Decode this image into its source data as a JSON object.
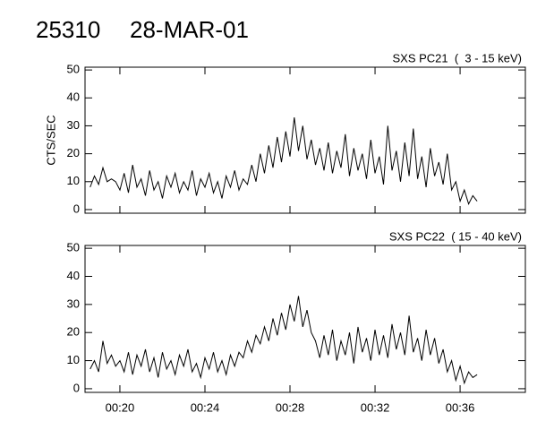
{
  "header": {
    "id": "25310",
    "date": "28-MAR-01"
  },
  "chart_data": [
    {
      "type": "line",
      "title": "SXS PC21  (  3 - 15 keV)",
      "ylabel": "CTS/SEC",
      "xlim": [
        18.36,
        39.07
      ],
      "ylim": [
        -1.3,
        51
      ],
      "xticks": [
        20,
        24,
        28,
        32,
        36
      ],
      "yticks": [
        0,
        10,
        20,
        30,
        40,
        50
      ],
      "x": [
        18.6,
        18.8,
        19.0,
        19.2,
        19.4,
        19.6,
        19.8,
        20.0,
        20.2,
        20.4,
        20.6,
        20.8,
        21.0,
        21.2,
        21.4,
        21.6,
        21.8,
        22.0,
        22.2,
        22.4,
        22.6,
        22.8,
        23.0,
        23.2,
        23.4,
        23.6,
        23.8,
        24.0,
        24.2,
        24.4,
        24.6,
        24.8,
        25.0,
        25.2,
        25.4,
        25.6,
        25.8,
        26.0,
        26.2,
        26.4,
        26.6,
        26.8,
        27.0,
        27.2,
        27.4,
        27.6,
        27.8,
        28.0,
        28.2,
        28.4,
        28.6,
        28.8,
        29.0,
        29.2,
        29.4,
        29.6,
        29.8,
        30.0,
        30.2,
        30.4,
        30.6,
        30.8,
        31.0,
        31.2,
        31.4,
        31.6,
        31.8,
        32.0,
        32.2,
        32.4,
        32.6,
        32.8,
        33.0,
        33.2,
        33.4,
        33.6,
        33.8,
        34.0,
        34.2,
        34.4,
        34.6,
        34.8,
        35.0,
        35.2,
        35.4,
        35.6,
        35.8,
        36.0,
        36.2,
        36.4,
        36.6,
        36.8
      ],
      "series": [
        {
          "color": "#000000",
          "values": [
            8,
            12,
            9,
            15,
            10,
            11,
            10,
            7,
            13,
            6,
            16,
            8,
            11,
            5,
            14,
            7,
            10,
            4,
            12,
            8,
            13,
            6,
            10,
            7,
            14,
            5,
            11,
            8,
            13,
            6,
            10,
            4,
            12,
            8,
            14,
            7,
            11,
            9,
            16,
            10,
            20,
            13,
            23,
            15,
            26,
            17,
            28,
            19,
            33,
            21,
            30,
            18,
            25,
            16,
            22,
            14,
            24,
            13,
            21,
            15,
            27,
            12,
            22,
            14,
            20,
            11,
            25,
            13,
            19,
            9,
            30,
            14,
            21,
            10,
            24,
            12,
            29,
            11,
            19,
            8,
            22,
            12,
            17,
            9,
            20,
            7,
            10,
            3,
            7,
            2,
            5,
            3
          ]
        }
      ]
    },
    {
      "type": "line",
      "title": "SXS PC22  ( 15 - 40 keV)",
      "xlim": [
        18.36,
        39.07
      ],
      "ylim": [
        -1.3,
        51
      ],
      "xticks": [
        {
          "value": 20,
          "label": "00:20"
        },
        {
          "value": 24,
          "label": "00:24"
        },
        {
          "value": 28,
          "label": "00:28"
        },
        {
          "value": 32,
          "label": "00:32"
        },
        {
          "value": 36,
          "label": "00:36"
        }
      ],
      "yticks": [
        0,
        10,
        20,
        30,
        40,
        50
      ],
      "x": [
        18.6,
        18.8,
        19.0,
        19.2,
        19.4,
        19.6,
        19.8,
        20.0,
        20.2,
        20.4,
        20.6,
        20.8,
        21.0,
        21.2,
        21.4,
        21.6,
        21.8,
        22.0,
        22.2,
        22.4,
        22.6,
        22.8,
        23.0,
        23.2,
        23.4,
        23.6,
        23.8,
        24.0,
        24.2,
        24.4,
        24.6,
        24.8,
        25.0,
        25.2,
        25.4,
        25.6,
        25.8,
        26.0,
        26.2,
        26.4,
        26.6,
        26.8,
        27.0,
        27.2,
        27.4,
        27.6,
        27.8,
        28.0,
        28.2,
        28.4,
        28.6,
        28.8,
        29.0,
        29.2,
        29.4,
        29.6,
        29.8,
        30.0,
        30.2,
        30.4,
        30.6,
        30.8,
        31.0,
        31.2,
        31.4,
        31.6,
        31.8,
        32.0,
        32.2,
        32.4,
        32.6,
        32.8,
        33.0,
        33.2,
        33.4,
        33.6,
        33.8,
        34.0,
        34.2,
        34.4,
        34.6,
        34.8,
        35.0,
        35.2,
        35.4,
        35.6,
        35.8,
        36.0,
        36.2,
        36.4,
        36.6,
        36.8
      ],
      "series": [
        {
          "color": "#000000",
          "values": [
            7,
            10,
            6,
            17,
            9,
            12,
            8,
            10,
            6,
            13,
            5,
            12,
            8,
            14,
            6,
            11,
            4,
            13,
            7,
            10,
            5,
            12,
            8,
            14,
            6,
            9,
            4,
            11,
            7,
            13,
            6,
            10,
            5,
            12,
            8,
            13,
            11,
            17,
            13,
            19,
            16,
            22,
            17,
            25,
            19,
            27,
            21,
            30,
            24,
            33,
            22,
            28,
            20,
            17,
            11,
            19,
            12,
            21,
            10,
            17,
            12,
            20,
            9,
            22,
            13,
            18,
            10,
            21,
            12,
            19,
            11,
            23,
            14,
            20,
            12,
            26,
            13,
            18,
            10,
            21,
            12,
            18,
            9,
            14,
            6,
            10,
            3,
            8,
            2,
            6,
            4,
            5
          ]
        }
      ]
    }
  ]
}
